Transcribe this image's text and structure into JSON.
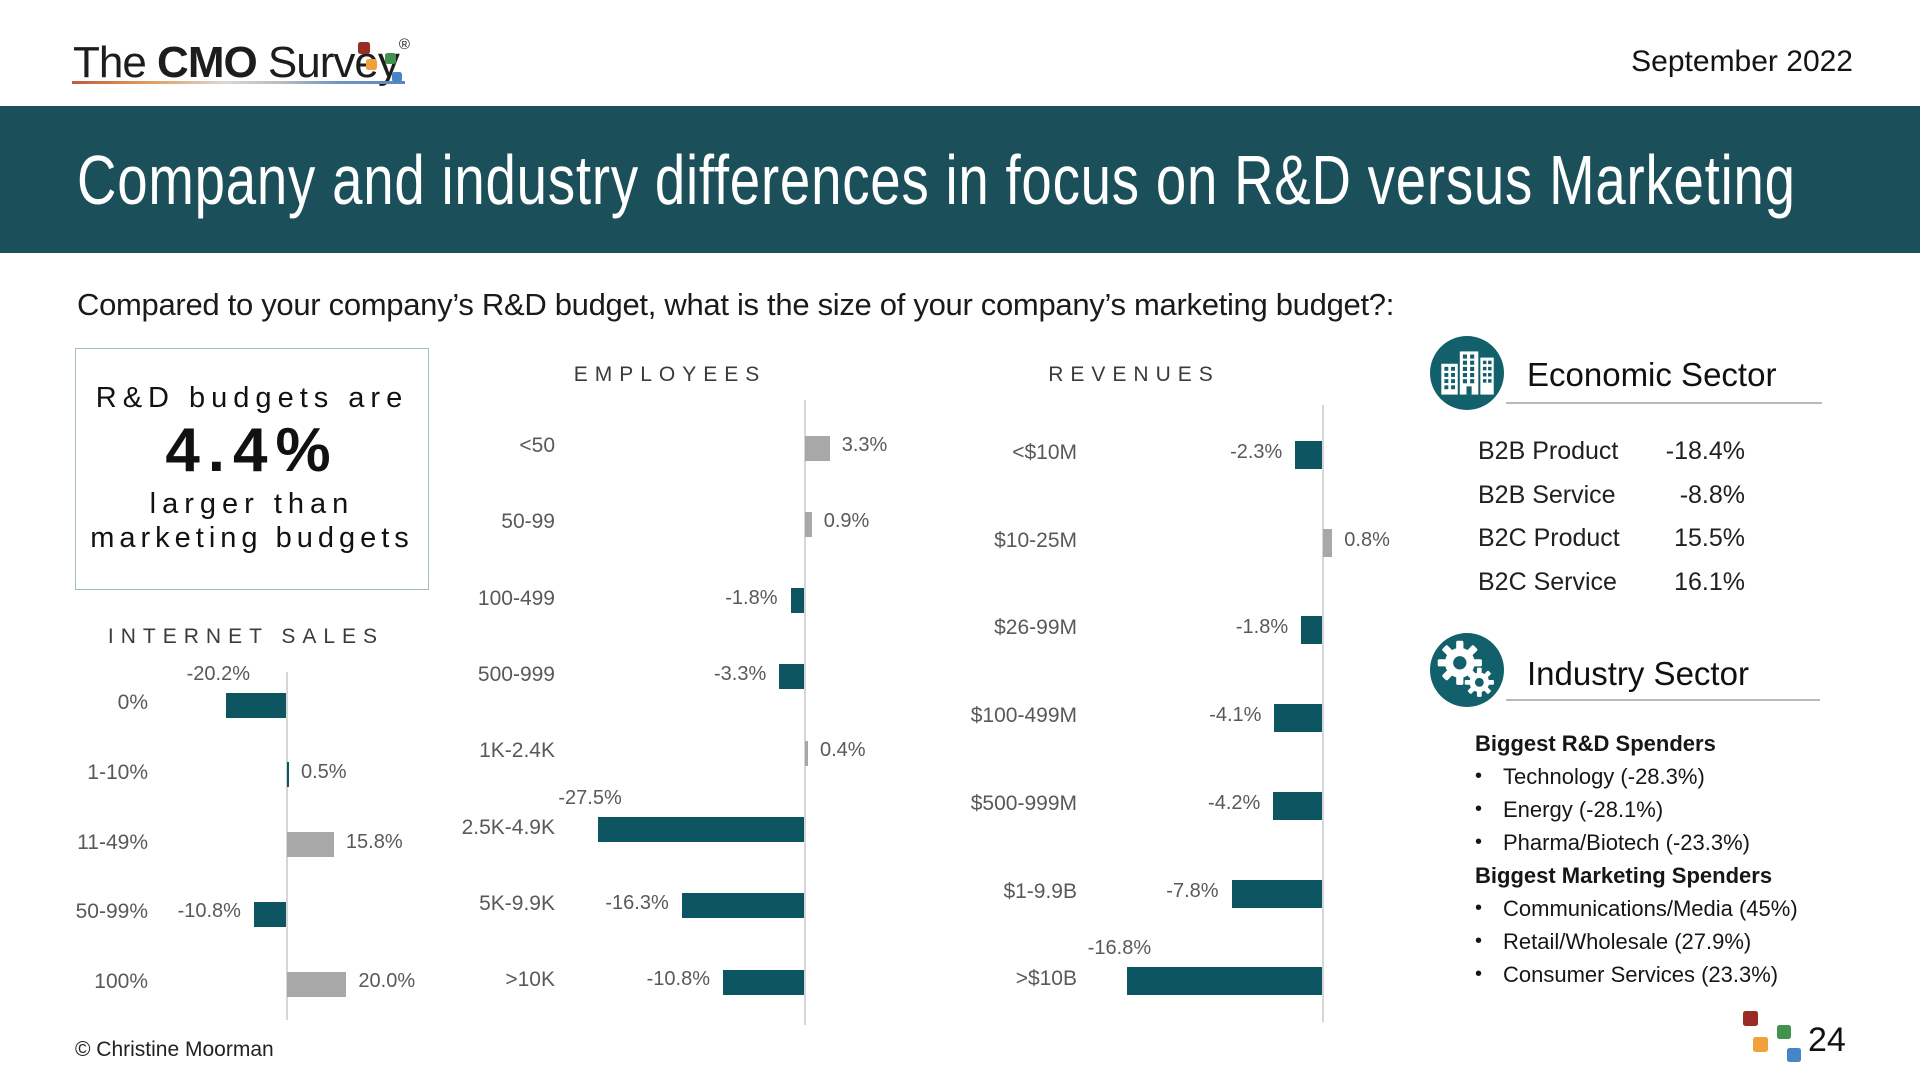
{
  "logo": {
    "word1": "The ",
    "word2": "CMO",
    "word3": " Survey",
    "registered": "®"
  },
  "meta": {
    "date": "September 2022",
    "copyright": "© Christine Moorman",
    "page_number": "24"
  },
  "title_banner": {
    "text": "Company and industry differences in focus on R&D versus Marketing",
    "bg_color": "#1b4f5a"
  },
  "question": {
    "text": "Compared to your company’s R&D budget, what is the size of your company’s marketing budget?:"
  },
  "stat_box": {
    "line1": "R&D budgets are",
    "value": "4.4%",
    "line2": "larger than",
    "line3": "marketing budgets"
  },
  "colors": {
    "teal_bar": "#0d5661",
    "gray_bar": "#a8a8a8",
    "banner_teal": "#1b4f5a",
    "icon_teal": "#12606b",
    "label_gray": "#595959",
    "logo_red": "#9a2c26",
    "logo_green": "#43914e",
    "logo_orange": "#f0a03c",
    "logo_blue": "#4486c6"
  },
  "chart_data": [
    {
      "type": "bar",
      "orientation": "horizontal",
      "title": "INTERNET SALES",
      "unit": "%",
      "xlim": [
        -30,
        25
      ],
      "categories": [
        "0%",
        "1-10%",
        "11-49%",
        "50-99%",
        "100%"
      ],
      "values": [
        -20.2,
        0.5,
        15.8,
        -10.8,
        20.0
      ],
      "labels": [
        "-20.2%",
        "0.5%",
        "15.8%",
        "-10.8%",
        "20.0%"
      ],
      "bar_colors": [
        "teal",
        "teal",
        "gray",
        "teal",
        "gray"
      ],
      "label_pos": [
        "above",
        "right",
        "right",
        "left",
        "right"
      ]
    },
    {
      "type": "bar",
      "orientation": "horizontal",
      "title": "EMPLOYEES",
      "unit": "%",
      "xlim": [
        -30,
        10
      ],
      "categories": [
        "<50",
        "50-99",
        "100-499",
        "500-999",
        "1K-2.4K",
        "2.5K-4.9K",
        "5K-9.9K",
        ">10K"
      ],
      "values": [
        3.3,
        0.9,
        -1.8,
        -3.3,
        0.4,
        -27.5,
        -16.3,
        -10.8
      ],
      "labels": [
        "3.3%",
        "0.9%",
        "-1.8%",
        "-3.3%",
        "0.4%",
        "-27.5%",
        "-16.3%",
        "-10.8%"
      ],
      "bar_colors": [
        "gray",
        "gray",
        "teal",
        "teal",
        "gray",
        "teal",
        "teal",
        "teal"
      ],
      "label_pos": [
        "right",
        "right",
        "left",
        "left",
        "right",
        "above",
        "left",
        "left"
      ]
    },
    {
      "type": "bar",
      "orientation": "horizontal",
      "title": "REVENUES",
      "unit": "%",
      "xlim": [
        -20,
        5
      ],
      "categories": [
        "<$10M",
        "$10-25M",
        "$26-99M",
        "$100-499M",
        "$500-999M",
        "$1-9.9B",
        ">$10B"
      ],
      "values": [
        -2.3,
        0.8,
        -1.8,
        -4.1,
        -4.2,
        -7.8,
        -16.8
      ],
      "labels": [
        "-2.3%",
        "0.8%",
        "-1.8%",
        "-4.1%",
        "-4.2%",
        "-7.8%",
        "-16.8%"
      ],
      "bar_colors": [
        "teal",
        "gray",
        "teal",
        "teal",
        "teal",
        "teal",
        "teal"
      ],
      "label_pos": [
        "left",
        "right",
        "left",
        "left",
        "left",
        "left",
        "above"
      ]
    }
  ],
  "economic_sector": {
    "title": "Economic Sector",
    "rows": [
      {
        "label": "B2B Product",
        "value": "-18.4%"
      },
      {
        "label": "B2B Service",
        "value": "-8.8%"
      },
      {
        "label": "B2C Product",
        "value": "15.5%"
      },
      {
        "label": "B2C Service",
        "value": "16.1%"
      }
    ]
  },
  "industry_sector": {
    "title": "Industry Sector",
    "groups": [
      {
        "heading": "Biggest R&D Spenders",
        "items": [
          "Technology (-28.3%)",
          "Energy (-28.1%)",
          "Pharma/Biotech (-23.3%)"
        ]
      },
      {
        "heading": "Biggest Marketing Spenders",
        "items": [
          "Communications/Media (45%)",
          "Retail/Wholesale (27.9%)",
          "Consumer Services (23.3%)"
        ]
      }
    ]
  }
}
